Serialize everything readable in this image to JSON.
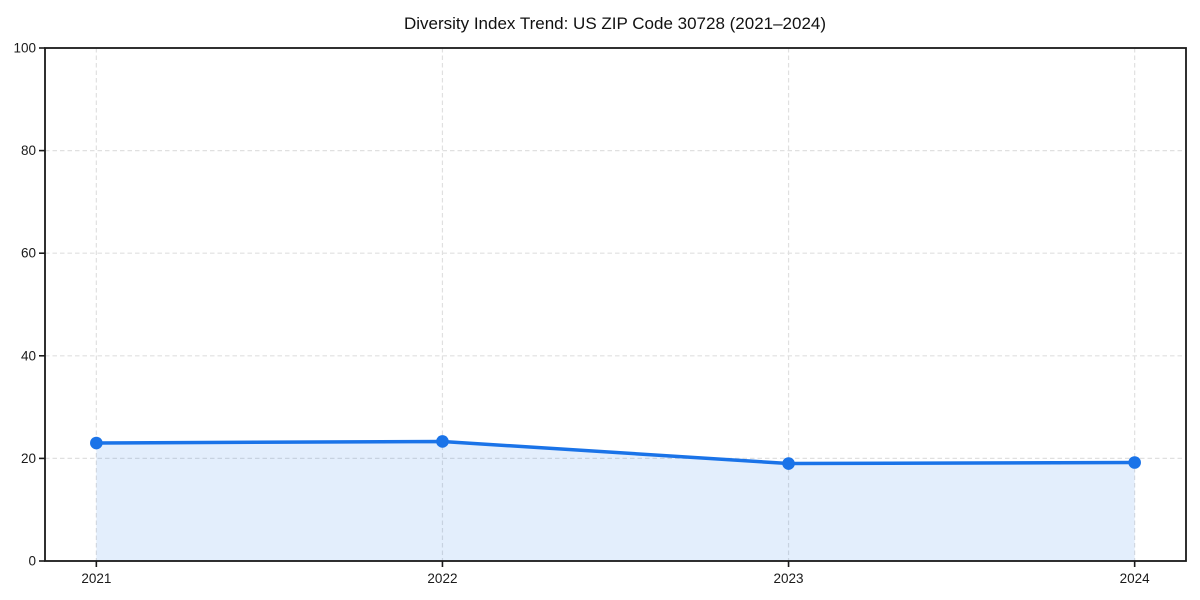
{
  "chart_data": {
    "type": "line",
    "title": "Diversity Index Trend: US ZIP Code 30728 (2021–2024)",
    "x": [
      "2021",
      "2022",
      "2023",
      "2024"
    ],
    "values": [
      23.0,
      23.3,
      19.0,
      19.2
    ],
    "xlabel": "",
    "ylabel": "",
    "ylim": [
      0,
      100
    ],
    "yticks": [
      0,
      20,
      40,
      60,
      80,
      100
    ],
    "grid": true,
    "grid_style": "dashed",
    "legend": "none",
    "area_fill": true,
    "marker": "circle",
    "colors": {
      "line": "#1a73e8",
      "marker": "#1a73e8",
      "fill": "rgba(26,115,232,0.12)",
      "grid": "#e0e0e0",
      "spine": "#1a1a1a",
      "text": "#1a1a1a",
      "background": "#ffffff"
    }
  }
}
